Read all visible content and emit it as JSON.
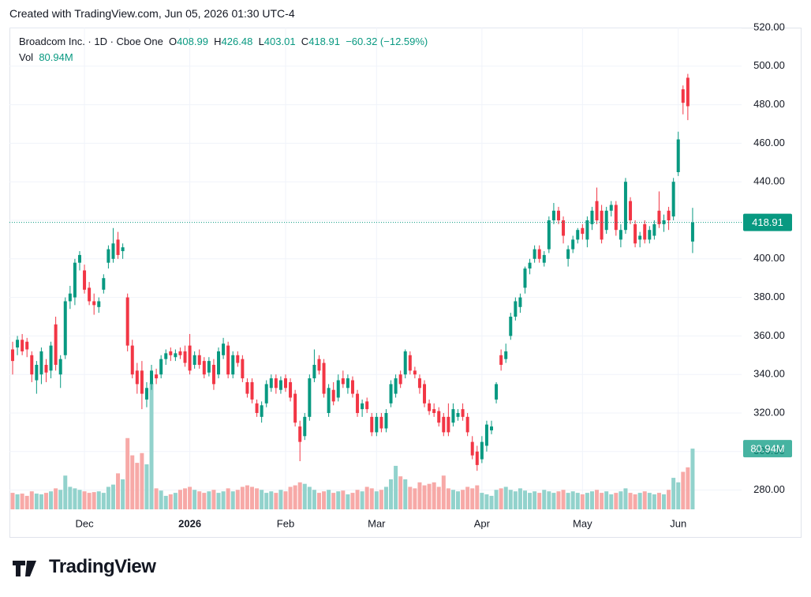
{
  "header": {
    "created": "Created with TradingView.com, Jun 05, 2026 01:30 UTC-4"
  },
  "footer": {
    "brand": "TradingView"
  },
  "chart_data": {
    "type": "candlestick",
    "legend": {
      "symbol": "Broadcom Inc. · 1D · Cboe One",
      "letters": [
        "O",
        "H",
        "L",
        "C"
      ],
      "change": "−60.32 (−12.59%)",
      "volume_name": "Vol",
      "volume_label": "80.94M"
    },
    "up_color": "#089981",
    "down_color": "#f23645",
    "volume_up_color": "#92d2cc",
    "volume_down_color": "#f7a9a7",
    "ylim": [
      270,
      520
    ],
    "yticks": [
      {
        "value": 280,
        "label": "280.00"
      },
      {
        "value": 300,
        "label": "300.00"
      },
      {
        "value": 320,
        "label": "320.00"
      },
      {
        "value": 340,
        "label": "340.00"
      },
      {
        "value": 360,
        "label": "360.00"
      },
      {
        "value": 380,
        "label": "380.00"
      },
      {
        "value": 400,
        "label": "400.00"
      },
      {
        "value": 420,
        "label": "420.00"
      },
      {
        "value": 440,
        "label": "440.00"
      },
      {
        "value": 460,
        "label": "460.00"
      },
      {
        "value": 480,
        "label": "480.00"
      },
      {
        "value": 500,
        "label": "500.00"
      },
      {
        "value": 520,
        "label": "520.00"
      }
    ],
    "grid": true,
    "categories": [
      null,
      null,
      null,
      null,
      null,
      null,
      null,
      null,
      null,
      null,
      null,
      null,
      null,
      null,
      null,
      "Dec",
      null,
      null,
      null,
      null,
      null,
      null,
      null,
      null,
      null,
      null,
      null,
      null,
      null,
      null,
      null,
      null,
      null,
      null,
      null,
      null,
      null,
      "2026",
      null,
      null,
      null,
      null,
      null,
      null,
      null,
      null,
      null,
      null,
      null,
      null,
      null,
      null,
      null,
      null,
      null,
      null,
      null,
      "Feb",
      null,
      null,
      null,
      null,
      null,
      null,
      null,
      null,
      null,
      null,
      null,
      null,
      null,
      null,
      null,
      null,
      null,
      null,
      "Mar",
      null,
      null,
      null,
      null,
      null,
      null,
      null,
      null,
      null,
      null,
      null,
      null,
      null,
      null,
      null,
      null,
      null,
      null,
      null,
      null,
      null,
      "Apr",
      null,
      null,
      null,
      null,
      null,
      null,
      null,
      null,
      null,
      null,
      null,
      null,
      null,
      null,
      null,
      null,
      null,
      null,
      null,
      null,
      "May",
      null,
      null,
      null,
      null,
      null,
      null,
      null,
      null,
      null,
      null,
      null,
      null,
      null,
      null,
      null,
      null,
      null,
      null,
      null,
      "Jun",
      null,
      null,
      null
    ],
    "open": [
      353,
      354,
      358,
      357,
      350,
      337,
      340,
      345,
      342,
      366,
      340,
      350,
      378,
      380,
      398,
      394,
      385,
      378,
      375,
      384,
      398,
      400,
      410,
      404,
      380,
      355,
      342,
      342,
      327,
      335,
      340,
      340,
      348,
      352,
      349,
      352,
      352,
      355,
      345,
      350,
      347,
      341,
      345,
      340,
      350,
      355,
      340,
      350,
      348,
      336,
      336,
      325,
      318,
      325,
      333,
      338,
      332,
      338,
      336,
      330,
      313,
      308,
      318,
      338,
      348,
      346,
      320,
      332,
      328,
      338,
      333,
      337,
      330,
      322,
      326,
      318,
      310,
      318,
      312,
      325,
      330,
      340,
      340,
      350,
      342,
      338,
      335,
      325,
      322,
      321,
      318,
      318,
      315,
      318,
      322,
      318,
      305,
      300,
      296,
      303,
      311,
      327,
      350,
      348,
      360,
      370,
      375,
      385,
      395,
      400,
      405,
      398,
      405,
      420,
      425,
      420,
      400,
      405,
      410,
      416,
      410,
      418,
      430,
      425,
      415,
      425,
      428,
      410,
      415,
      430,
      418,
      410,
      418,
      410,
      412,
      425,
      418,
      425,
      422,
      445,
      488,
      494,
      408.99
    ],
    "high": [
      357,
      360,
      361,
      359,
      352,
      347,
      354,
      348,
      357,
      370,
      350,
      380,
      386,
      400,
      404,
      397,
      388,
      382,
      380,
      392,
      407,
      416,
      414,
      408,
      382,
      358,
      346,
      347,
      336,
      345,
      343,
      350,
      353,
      354,
      353,
      354,
      355,
      361,
      352,
      353,
      349,
      349,
      348,
      354,
      359,
      357,
      352,
      352,
      350,
      338,
      338,
      327,
      326,
      337,
      340,
      340,
      339,
      340,
      338,
      332,
      316,
      320,
      340,
      353,
      350,
      348,
      335,
      336,
      340,
      342,
      340,
      339,
      332,
      327,
      328,
      320,
      320,
      320,
      322,
      337,
      340,
      342,
      353,
      352,
      344,
      340,
      337,
      327,
      325,
      323,
      320,
      325,
      325,
      322,
      325,
      320,
      308,
      303,
      308,
      316,
      316,
      336,
      353,
      356,
      372,
      380,
      382,
      396,
      400,
      407,
      407,
      404,
      422,
      429,
      427,
      422,
      407,
      412,
      416,
      418,
      422,
      427,
      437,
      428,
      427,
      430,
      430,
      418,
      442,
      432,
      420,
      414,
      420,
      417,
      420,
      435,
      423,
      427,
      442,
      466,
      490,
      496,
      426.48
    ],
    "low": [
      340,
      350,
      350,
      349,
      336,
      330,
      335,
      336,
      338,
      342,
      333,
      348,
      374,
      376,
      394,
      382,
      376,
      371,
      372,
      382,
      395,
      398,
      400,
      400,
      352,
      338,
      330,
      322,
      323,
      332,
      335,
      338,
      345,
      347,
      347,
      348,
      344,
      340,
      343,
      343,
      338,
      339,
      332,
      338,
      348,
      338,
      338,
      344,
      336,
      328,
      325,
      318,
      315,
      323,
      331,
      330,
      330,
      331,
      326,
      313,
      295,
      306,
      316,
      336,
      340,
      328,
      318,
      324,
      326,
      333,
      330,
      328,
      318,
      318,
      320,
      308,
      308,
      310,
      310,
      323,
      328,
      333,
      338,
      340,
      338,
      330,
      323,
      319,
      318,
      313,
      308,
      308,
      313,
      316,
      316,
      308,
      296,
      290,
      294,
      300,
      309,
      325,
      342,
      346,
      358,
      368,
      372,
      382,
      392,
      398,
      398,
      396,
      403,
      418,
      418,
      408,
      396,
      403,
      408,
      410,
      406,
      415,
      418,
      408,
      413,
      422,
      412,
      406,
      413,
      418,
      406,
      406,
      408,
      408,
      410,
      416,
      414,
      415,
      420,
      443,
      475,
      472,
      403.01
    ],
    "close": [
      347,
      358,
      352,
      353,
      340,
      345,
      352,
      341,
      355,
      345,
      348,
      378,
      382,
      398,
      402,
      384,
      378,
      376,
      378,
      390,
      405,
      408,
      402,
      406,
      355,
      340,
      335,
      330,
      333,
      342,
      338,
      348,
      351,
      350,
      351,
      350,
      346,
      342,
      350,
      345,
      340,
      347,
      335,
      352,
      356,
      340,
      350,
      346,
      338,
      330,
      327,
      320,
      324,
      335,
      338,
      333,
      337,
      333,
      328,
      315,
      305,
      318,
      338,
      345,
      342,
      330,
      333,
      326,
      337,
      335,
      338,
      330,
      320,
      325,
      322,
      310,
      318,
      312,
      320,
      335,
      338,
      335,
      352,
      342,
      340,
      333,
      325,
      321,
      320,
      315,
      310,
      310,
      322,
      320,
      318,
      310,
      298,
      293,
      305,
      314,
      313,
      335,
      345,
      352,
      370,
      378,
      380,
      395,
      398,
      405,
      400,
      402,
      420,
      425,
      420,
      412,
      405,
      410,
      415,
      413,
      420,
      425,
      420,
      410,
      425,
      428,
      415,
      415,
      440,
      420,
      408,
      412,
      410,
      415,
      418,
      418,
      420,
      420,
      440,
      462,
      481,
      479.23,
      418.91
    ],
    "volume": [
      22,
      20,
      21,
      18,
      24,
      21,
      20,
      22,
      24,
      28,
      26,
      45,
      30,
      28,
      26,
      24,
      22,
      23,
      24,
      22,
      30,
      33,
      48,
      40,
      95,
      72,
      62,
      75,
      60,
      168,
      28,
      25,
      18,
      20,
      22,
      26,
      28,
      30,
      26,
      24,
      22,
      24,
      26,
      22,
      24,
      28,
      24,
      26,
      30,
      32,
      30,
      28,
      26,
      22,
      24,
      22,
      26,
      24,
      30,
      32,
      36,
      34,
      30,
      26,
      22,
      24,
      26,
      22,
      24,
      25,
      20,
      22,
      26,
      24,
      30,
      28,
      24,
      26,
      30,
      40,
      58,
      44,
      40,
      30,
      28,
      36,
      32,
      34,
      36,
      30,
      45,
      28,
      26,
      24,
      26,
      30,
      28,
      32,
      22,
      20,
      18,
      26,
      28,
      30,
      26,
      24,
      28,
      25,
      22,
      24,
      22,
      26,
      24,
      22,
      24,
      26,
      22,
      24,
      22,
      20,
      22,
      24,
      26,
      22,
      24,
      20,
      22,
      24,
      28,
      22,
      20,
      22,
      24,
      22,
      20,
      22,
      20,
      26,
      42,
      36,
      50,
      56,
      80.94
    ]
  }
}
